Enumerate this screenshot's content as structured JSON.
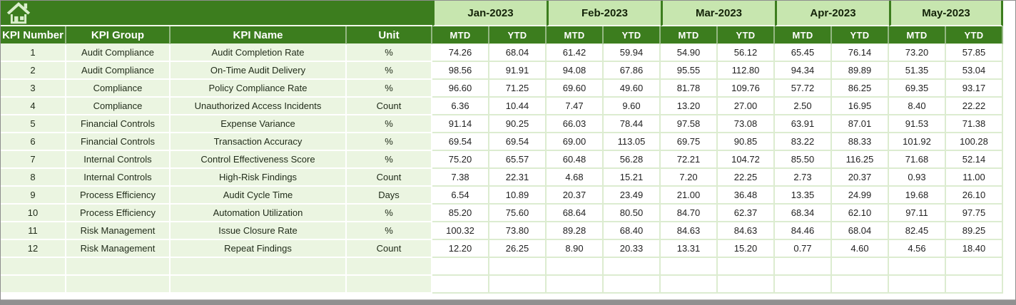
{
  "colors": {
    "header_green": "#3c7d1e",
    "month_band_green": "#c7e6af",
    "row_tint_green": "#ebf5e1",
    "cell_border_green": "#dcecd0",
    "window_border_gray": "#8e8e8e",
    "home_icon_fill": "#d9eecb"
  },
  "home": {
    "icon": "home-icon"
  },
  "table": {
    "columns": [
      "KPI Number",
      "KPI Group",
      "KPI Name",
      "Unit"
    ],
    "months": [
      "Jan-2023",
      "Feb-2023",
      "Mar-2023",
      "Apr-2023",
      "May-2023"
    ],
    "sub_headers": [
      "MTD",
      "YTD"
    ],
    "empty_row_count": 2,
    "rows": [
      {
        "number": "1",
        "group": "Audit Compliance",
        "name": "Audit Completion Rate",
        "unit": "%",
        "values": [
          "74.26",
          "68.04",
          "61.42",
          "59.94",
          "54.90",
          "56.12",
          "65.45",
          "76.14",
          "73.20",
          "57.85"
        ]
      },
      {
        "number": "2",
        "group": "Audit Compliance",
        "name": "On-Time Audit Delivery",
        "unit": "%",
        "values": [
          "98.56",
          "91.91",
          "94.08",
          "67.86",
          "95.55",
          "112.80",
          "94.34",
          "89.89",
          "51.35",
          "53.04"
        ]
      },
      {
        "number": "3",
        "group": "Compliance",
        "name": "Policy Compliance Rate",
        "unit": "%",
        "values": [
          "96.60",
          "71.25",
          "69.60",
          "49.60",
          "81.78",
          "109.76",
          "57.72",
          "86.25",
          "69.35",
          "93.17"
        ]
      },
      {
        "number": "4",
        "group": "Compliance",
        "name": "Unauthorized Access Incidents",
        "unit": "Count",
        "values": [
          "6.36",
          "10.44",
          "7.47",
          "9.60",
          "13.20",
          "27.00",
          "2.50",
          "16.95",
          "8.40",
          "22.22"
        ]
      },
      {
        "number": "5",
        "group": "Financial Controls",
        "name": "Expense Variance",
        "unit": "%",
        "values": [
          "91.14",
          "90.25",
          "66.03",
          "78.44",
          "97.58",
          "73.08",
          "63.91",
          "87.01",
          "91.53",
          "71.38"
        ]
      },
      {
        "number": "6",
        "group": "Financial Controls",
        "name": "Transaction Accuracy",
        "unit": "%",
        "values": [
          "69.54",
          "69.54",
          "69.00",
          "113.05",
          "69.75",
          "90.85",
          "83.22",
          "88.33",
          "101.92",
          "100.28"
        ]
      },
      {
        "number": "7",
        "group": "Internal Controls",
        "name": "Control Effectiveness Score",
        "unit": "%",
        "values": [
          "75.20",
          "65.57",
          "60.48",
          "56.28",
          "72.21",
          "104.72",
          "85.50",
          "116.25",
          "71.68",
          "52.14"
        ]
      },
      {
        "number": "8",
        "group": "Internal Controls",
        "name": "High-Risk Findings",
        "unit": "Count",
        "values": [
          "7.38",
          "22.31",
          "4.68",
          "15.21",
          "7.20",
          "22.25",
          "2.73",
          "20.37",
          "0.93",
          "11.00"
        ]
      },
      {
        "number": "9",
        "group": "Process Efficiency",
        "name": "Audit Cycle Time",
        "unit": "Days",
        "values": [
          "6.54",
          "10.89",
          "20.37",
          "23.49",
          "21.00",
          "36.48",
          "13.35",
          "24.99",
          "19.68",
          "26.10"
        ]
      },
      {
        "number": "10",
        "group": "Process Efficiency",
        "name": "Automation Utilization",
        "unit": "%",
        "values": [
          "85.20",
          "75.60",
          "68.64",
          "80.50",
          "84.70",
          "62.37",
          "68.34",
          "62.10",
          "97.11",
          "97.75"
        ]
      },
      {
        "number": "11",
        "group": "Risk Management",
        "name": "Issue Closure Rate",
        "unit": "%",
        "values": [
          "100.32",
          "73.80",
          "89.28",
          "68.40",
          "84.63",
          "84.63",
          "84.46",
          "68.04",
          "82.45",
          "89.25"
        ]
      },
      {
        "number": "12",
        "group": "Risk Management",
        "name": "Repeat Findings",
        "unit": "Count",
        "values": [
          "12.20",
          "26.25",
          "8.90",
          "20.33",
          "13.31",
          "15.20",
          "0.77",
          "4.60",
          "4.56",
          "18.40"
        ]
      }
    ]
  }
}
